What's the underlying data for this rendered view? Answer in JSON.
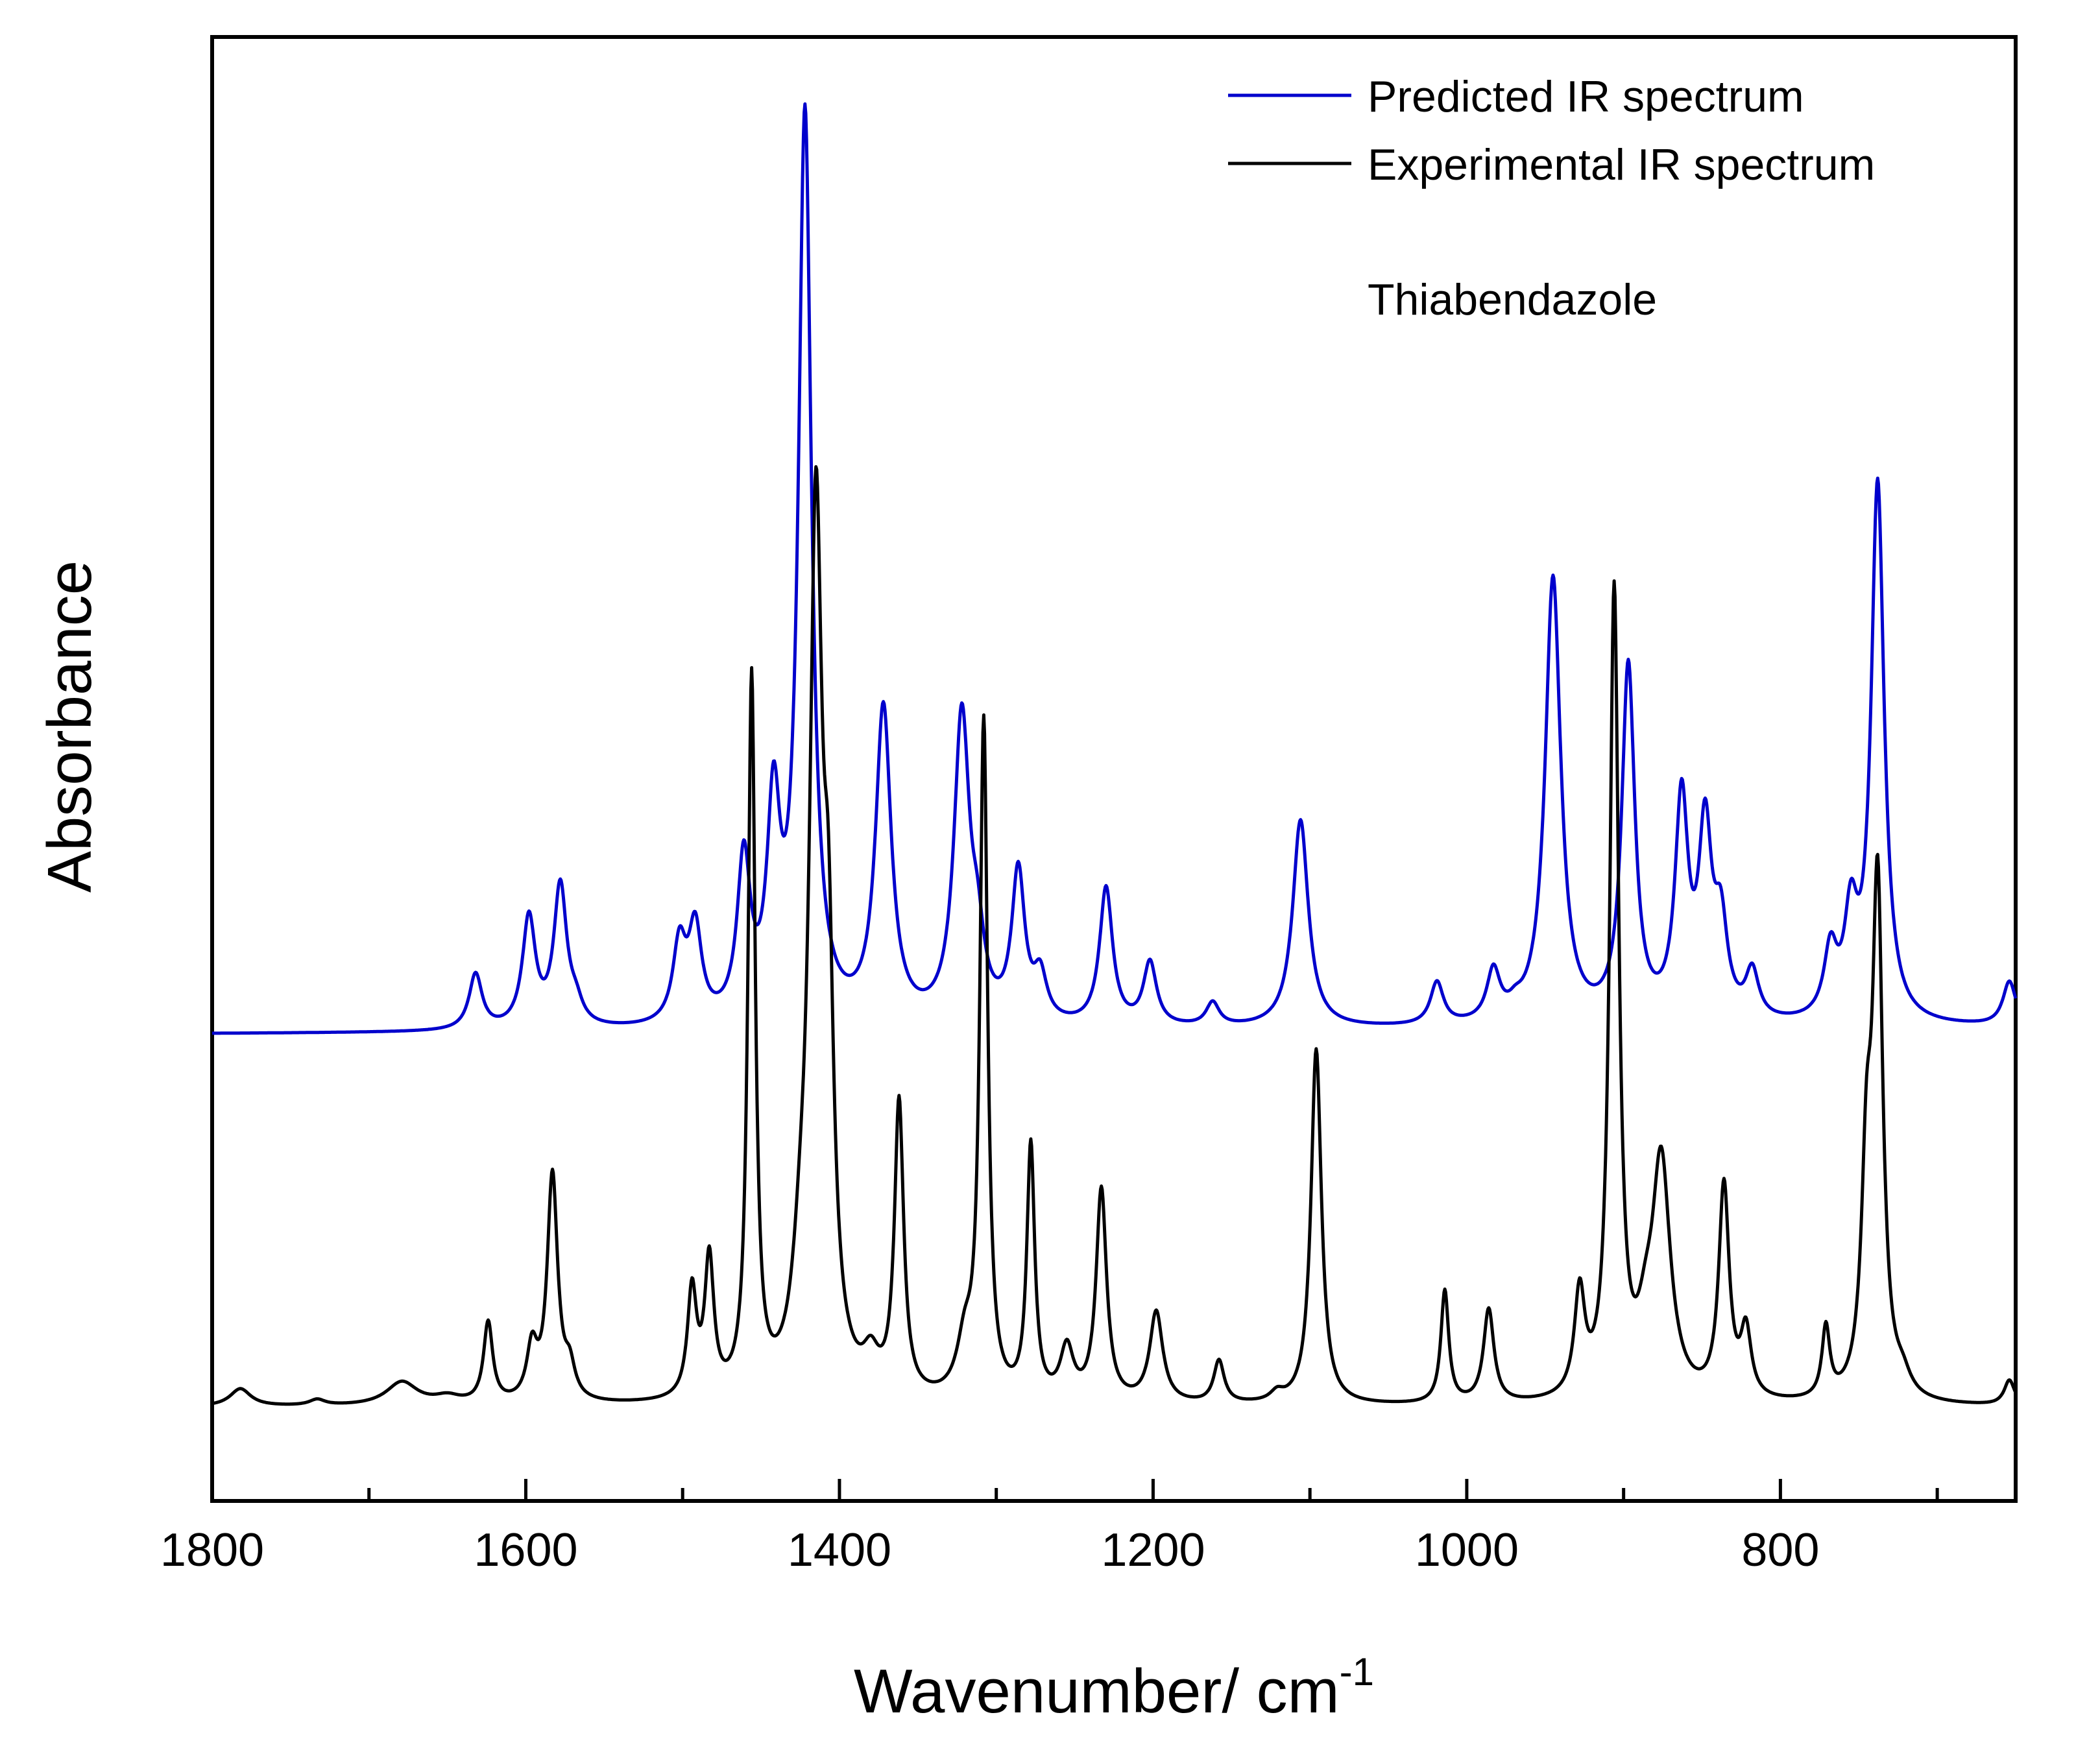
{
  "chart_data": {
    "type": "line",
    "title": "",
    "annotation": "Thiabendazole",
    "xlabel": "Wavenumber/ cm",
    "xlabel_superscript": "-1",
    "ylabel": "Absorbance",
    "xlim": [
      1800,
      650
    ],
    "x_reversed": true,
    "xticks": [
      1800,
      1600,
      1400,
      1200,
      1000,
      800
    ],
    "xtick_labels": [
      "1800",
      "1600",
      "1400",
      "1200",
      "1000",
      "800"
    ],
    "minor_xticks": [
      1700,
      1500,
      1300,
      1100,
      900,
      700
    ],
    "ylim": [
      0,
      1
    ],
    "yticks_visible": false,
    "grid": false,
    "legend_position": "top-right",
    "series": [
      {
        "name": "Predicted IR spectrum",
        "color": "#0000cc",
        "baseline": 0.319,
        "baseline_end": 0.323,
        "peaks": [
          {
            "x": 1632,
            "h": 0.038,
            "w": 5
          },
          {
            "x": 1598,
            "h": 0.075,
            "w": 5
          },
          {
            "x": 1578,
            "h": 0.096,
            "w": 5
          },
          {
            "x": 1568,
            "h": 0.012,
            "w": 5
          },
          {
            "x": 1502,
            "h": 0.053,
            "w": 5
          },
          {
            "x": 1492,
            "h": 0.063,
            "w": 5
          },
          {
            "x": 1461,
            "h": 0.108,
            "w": 5
          },
          {
            "x": 1442,
            "h": 0.138,
            "w": 5
          },
          {
            "x": 1422,
            "h": 0.619,
            "w": 5
          },
          {
            "x": 1372,
            "h": 0.214,
            "w": 6
          },
          {
            "x": 1322,
            "h": 0.208,
            "w": 6
          },
          {
            "x": 1312,
            "h": 0.042,
            "w": 5
          },
          {
            "x": 1286,
            "h": 0.102,
            "w": 5
          },
          {
            "x": 1272,
            "h": 0.03,
            "w": 5
          },
          {
            "x": 1230,
            "h": 0.094,
            "w": 5
          },
          {
            "x": 1202,
            "h": 0.043,
            "w": 5
          },
          {
            "x": 1162,
            "h": 0.016,
            "w": 5
          },
          {
            "x": 1106,
            "h": 0.142,
            "w": 6
          },
          {
            "x": 1019,
            "h": 0.029,
            "w": 5
          },
          {
            "x": 983,
            "h": 0.034,
            "w": 5
          },
          {
            "x": 969,
            "h": 0.006,
            "w": 5
          },
          {
            "x": 945,
            "h": 0.305,
            "w": 6
          },
          {
            "x": 897,
            "h": 0.242,
            "w": 5
          },
          {
            "x": 863,
            "h": 0.148,
            "w": 5
          },
          {
            "x": 848,
            "h": 0.125,
            "w": 5
          },
          {
            "x": 838,
            "h": 0.06,
            "w": 5
          },
          {
            "x": 818,
            "h": 0.032,
            "w": 5
          },
          {
            "x": 768,
            "h": 0.045,
            "w": 5
          },
          {
            "x": 755,
            "h": 0.065,
            "w": 5
          },
          {
            "x": 738,
            "h": 0.368,
            "w": 5
          },
          {
            "x": 654,
            "h": 0.03,
            "w": 5
          }
        ]
      },
      {
        "name": "Experimental IR spectrum",
        "color": "#000000",
        "baseline": 0.064,
        "peaks": [
          {
            "x": 1782,
            "h": 0.012,
            "w": 8
          },
          {
            "x": 1733,
            "h": 0.004,
            "w": 6
          },
          {
            "x": 1679,
            "h": 0.016,
            "w": 12
          },
          {
            "x": 1650,
            "h": 0.005,
            "w": 10
          },
          {
            "x": 1624,
            "h": 0.055,
            "w": 3.5
          },
          {
            "x": 1596,
            "h": 0.035,
            "w": 4
          },
          {
            "x": 1583,
            "h": 0.155,
            "w": 4
          },
          {
            "x": 1572,
            "h": 0.02,
            "w": 4
          },
          {
            "x": 1494,
            "h": 0.073,
            "w": 3.5
          },
          {
            "x": 1483,
            "h": 0.093,
            "w": 3.5
          },
          {
            "x": 1456,
            "h": 0.49,
            "w": 2.8
          },
          {
            "x": 1425,
            "h": 0.05,
            "w": 6
          },
          {
            "x": 1415,
            "h": 0.58,
            "w": 5
          },
          {
            "x": 1407,
            "h": 0.22,
            "w": 4
          },
          {
            "x": 1380,
            "h": 0.022,
            "w": 6
          },
          {
            "x": 1362,
            "h": 0.2,
            "w": 3.5
          },
          {
            "x": 1320,
            "h": 0.035,
            "w": 6
          },
          {
            "x": 1308,
            "h": 0.46,
            "w": 3
          },
          {
            "x": 1278,
            "h": 0.173,
            "w": 3
          },
          {
            "x": 1255,
            "h": 0.035,
            "w": 5
          },
          {
            "x": 1233,
            "h": 0.145,
            "w": 4
          },
          {
            "x": 1198,
            "h": 0.062,
            "w": 5
          },
          {
            "x": 1158,
            "h": 0.029,
            "w": 4
          },
          {
            "x": 1121,
            "h": 0.006,
            "w": 5
          },
          {
            "x": 1096,
            "h": 0.243,
            "w": 4
          },
          {
            "x": 1014,
            "h": 0.077,
            "w": 3
          },
          {
            "x": 986,
            "h": 0.064,
            "w": 4
          },
          {
            "x": 928,
            "h": 0.07,
            "w": 4
          },
          {
            "x": 906,
            "h": 0.55,
            "w": 3.5
          },
          {
            "x": 886,
            "h": 0.03,
            "w": 6
          },
          {
            "x": 876,
            "h": 0.16,
            "w": 7
          },
          {
            "x": 836,
            "h": 0.145,
            "w": 4
          },
          {
            "x": 822,
            "h": 0.045,
            "w": 4
          },
          {
            "x": 771,
            "h": 0.048,
            "w": 3
          },
          {
            "x": 745,
            "h": 0.14,
            "w": 4
          },
          {
            "x": 738,
            "h": 0.34,
            "w": 4
          },
          {
            "x": 722,
            "h": 0.012,
            "w": 6
          },
          {
            "x": 654,
            "h": 0.017,
            "w": 4
          }
        ]
      }
    ]
  }
}
